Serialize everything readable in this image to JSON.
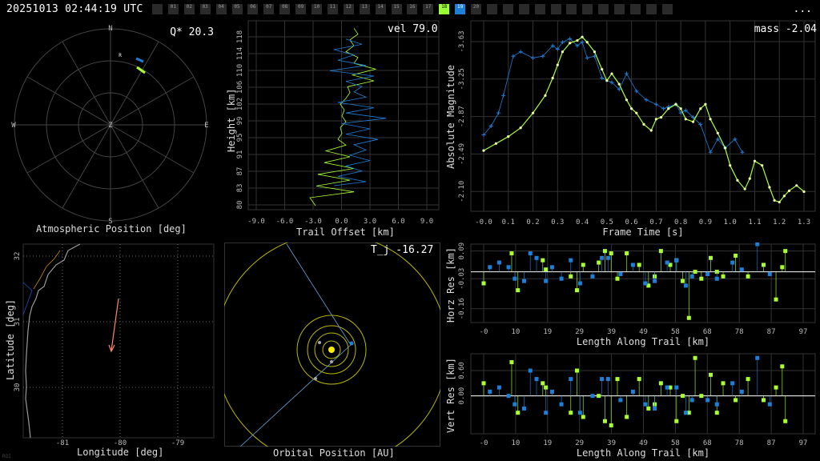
{
  "timestamp": "20251013 02:44:19 UTC",
  "menu": "...",
  "credit": "ROI",
  "cameras": [
    {
      "label": "",
      "state": "off"
    },
    {
      "label": "01",
      "state": "off"
    },
    {
      "label": "02",
      "state": "off"
    },
    {
      "label": "03",
      "state": "off"
    },
    {
      "label": "04",
      "state": "off"
    },
    {
      "label": "05",
      "state": "off"
    },
    {
      "label": "06",
      "state": "off"
    },
    {
      "label": "07",
      "state": "off"
    },
    {
      "label": "08",
      "state": "off"
    },
    {
      "label": "09",
      "state": "off"
    },
    {
      "label": "10",
      "state": "off"
    },
    {
      "label": "11",
      "state": "off"
    },
    {
      "label": "12",
      "state": "off"
    },
    {
      "label": "13",
      "state": "off"
    },
    {
      "label": "14",
      "state": "off"
    },
    {
      "label": "15",
      "state": "off"
    },
    {
      "label": "16",
      "state": "off"
    },
    {
      "label": "17",
      "state": "off"
    },
    {
      "label": "18",
      "state": "green"
    },
    {
      "label": "19",
      "state": "blue"
    },
    {
      "label": "20",
      "state": "off"
    },
    {
      "label": "",
      "state": "off"
    },
    {
      "label": "",
      "state": "off"
    },
    {
      "label": "",
      "state": "off"
    },
    {
      "label": "",
      "state": "off"
    },
    {
      "label": "",
      "state": "off"
    },
    {
      "label": "",
      "state": "off"
    },
    {
      "label": "",
      "state": "off"
    },
    {
      "label": "",
      "state": "off"
    },
    {
      "label": "",
      "state": "off"
    },
    {
      "label": "",
      "state": "off"
    },
    {
      "label": "",
      "state": "off"
    },
    {
      "label": "",
      "state": "off"
    }
  ],
  "colors": {
    "green": "#aaff33",
    "blue": "#1e7fd8",
    "grid": "#444444",
    "yellow": "#d8d800",
    "trail": "#ff8866"
  },
  "polar": {
    "label": "Atmospheric Position [deg]",
    "q_star": "Q* 20.3",
    "directions": [
      "N",
      "E",
      "S",
      "W",
      "Z"
    ],
    "marker": "R"
  },
  "height": {
    "vel": "vel 79.0",
    "xlabel": "Trail Offset [km]",
    "ylabel": "Height [km]",
    "xticks": [
      "-9.0",
      "-6.0",
      "-3.0",
      "0.0",
      "3.0",
      "6.0",
      "9.0"
    ],
    "yticks": [
      "80",
      "83",
      "87",
      "91",
      "95",
      "99",
      "102",
      "106",
      "110",
      "114",
      "118"
    ]
  },
  "map": {
    "xlabel": "Longitude [deg]",
    "ylabel": "Latitude [deg]",
    "xticks": [
      "-81",
      "-80",
      "-79"
    ],
    "yticks": [
      "32",
      "31",
      "30"
    ]
  },
  "orbit": {
    "label": "Orbital Position [AU]",
    "tj": "T_j -16.27"
  },
  "chart_data": [
    {
      "type": "line",
      "title": "mass -2.04",
      "xlabel": "Frame Time [s]",
      "ylabel": "Absolute Magnitude",
      "xticks": [
        "-0.0",
        "0.1",
        "0.2",
        "0.3",
        "0.4",
        "0.5",
        "0.6",
        "0.7",
        "0.8",
        "0.9",
        "1.0",
        "1.1",
        "1.2",
        "1.3"
      ],
      "yticks": [
        "-3.63",
        "-3.25",
        "-2.87",
        "-2.49",
        "-2.10"
      ],
      "xlim": [
        0.0,
        1.3
      ],
      "ylim": [
        -1.78,
        -3.85
      ],
      "series": [
        {
          "color": "green",
          "x": [
            0.0,
            0.05,
            0.1,
            0.15,
            0.2,
            0.25,
            0.28,
            0.3,
            0.32,
            0.35,
            0.38,
            0.4,
            0.42,
            0.45,
            0.48,
            0.5,
            0.52,
            0.55,
            0.58,
            0.6,
            0.62,
            0.65,
            0.68,
            0.7,
            0.72,
            0.75,
            0.78,
            0.8,
            0.82,
            0.85,
            0.88,
            0.9,
            0.92,
            0.95,
            0.98,
            1.0,
            1.03,
            1.06,
            1.08,
            1.1,
            1.13,
            1.16,
            1.18,
            1.2,
            1.22,
            1.24,
            1.27,
            1.3
          ],
          "y": [
            -2.42,
            -2.5,
            -2.58,
            -2.68,
            -2.85,
            -3.05,
            -3.25,
            -3.4,
            -3.55,
            -3.65,
            -3.68,
            -3.72,
            -3.66,
            -3.55,
            -3.35,
            -3.22,
            -3.3,
            -3.18,
            -3.0,
            -2.9,
            -2.85,
            -2.72,
            -2.65,
            -2.78,
            -2.8,
            -2.9,
            -2.95,
            -2.9,
            -2.78,
            -2.75,
            -2.9,
            -2.95,
            -2.78,
            -2.62,
            -2.45,
            -2.25,
            -2.08,
            -1.98,
            -2.1,
            -2.3,
            -2.25,
            -2.0,
            -1.85,
            -1.83,
            -1.9,
            -1.96,
            -2.02,
            -1.95
          ]
        },
        {
          "color": "blue",
          "x": [
            0.0,
            0.03,
            0.06,
            0.08,
            0.12,
            0.15,
            0.2,
            0.24,
            0.28,
            0.3,
            0.32,
            0.35,
            0.38,
            0.4,
            0.42,
            0.45,
            0.48,
            0.52,
            0.55,
            0.58,
            0.62,
            0.66,
            0.7,
            0.73,
            0.75,
            0.78,
            0.8,
            0.82,
            0.85,
            0.88,
            0.92,
            0.95,
            0.98,
            1.02,
            1.05
          ],
          "y": [
            -2.6,
            -2.7,
            -2.85,
            -3.05,
            -3.5,
            -3.55,
            -3.48,
            -3.5,
            -3.62,
            -3.58,
            -3.66,
            -3.7,
            -3.62,
            -3.66,
            -3.48,
            -3.5,
            -3.25,
            -3.2,
            -3.12,
            -3.3,
            -3.1,
            -3.0,
            -2.95,
            -2.9,
            -2.92,
            -2.95,
            -2.85,
            -2.88,
            -2.8,
            -2.72,
            -2.4,
            -2.55,
            -2.45,
            -2.55,
            -2.4
          ]
        }
      ]
    },
    {
      "type": "scatter",
      "ylabel": "Horz Res [km]",
      "xlabel": "Length Along Trail [km]",
      "xticks": [
        "-0",
        "10",
        "19",
        "29",
        "39",
        "49",
        "58",
        "68",
        "78",
        "87",
        "97"
      ],
      "yticks": [
        "0.09",
        "-0.03",
        "-0.16"
      ],
      "xlim": [
        -3,
        100
      ],
      "ylim": [
        -0.22,
        0.12
      ],
      "series": [
        {
          "color": "green",
          "x": [
            0,
            9,
            11,
            19,
            20,
            28,
            30,
            32,
            37,
            39,
            41,
            43,
            46,
            50,
            53,
            55,
            57,
            60,
            62,
            64,
            66,
            68,
            70,
            73,
            75,
            77,
            81,
            85,
            90,
            94,
            96,
            97
          ],
          "y": [
            -0.05,
            0.08,
            -0.08,
            0.05,
            0.01,
            -0.02,
            -0.08,
            0.03,
            0.04,
            0.09,
            0.08,
            -0.03,
            0.08,
            0.03,
            -0.06,
            -0.02,
            0.09,
            0.03,
            0.05,
            -0.04,
            -0.2,
            0.0,
            -0.03,
            0.06,
            0.0,
            -0.02,
            0.07,
            -0.02,
            0.03,
            -0.12,
            0.02,
            0.09
          ]
        },
        {
          "color": "blue",
          "x": [
            2,
            5,
            8,
            10,
            13,
            15,
            17,
            20,
            22,
            25,
            28,
            31,
            35,
            38,
            40,
            44,
            48,
            52,
            55,
            59,
            62,
            65,
            67,
            72,
            75,
            80,
            83,
            88,
            92
          ],
          "y": [
            0.02,
            0.04,
            0.02,
            -0.03,
            -0.04,
            0.08,
            0.06,
            -0.04,
            0.02,
            -0.03,
            0.05,
            -0.05,
            -0.02,
            0.06,
            0.06,
            -0.01,
            0.03,
            -0.05,
            -0.04,
            0.04,
            0.05,
            -0.06,
            -0.02,
            -0.01,
            -0.03,
            0.04,
            0.01,
            0.12,
            -0.01
          ]
        }
      ]
    },
    {
      "type": "scatter",
      "ylabel": "Vert Res [km]",
      "xlabel": "Length Along Trail [km]",
      "xticks": [
        "-0",
        "10",
        "19",
        "29",
        "39",
        "49",
        "58",
        "68",
        "78",
        "87",
        "97"
      ],
      "yticks": [
        "0.60",
        "0.00"
      ],
      "xlim": [
        -3,
        100
      ],
      "ylim": [
        -0.9,
        1.0
      ],
      "series": [
        {
          "color": "green",
          "x": [
            0,
            9,
            11,
            19,
            20,
            28,
            30,
            32,
            37,
            39,
            41,
            43,
            46,
            50,
            53,
            55,
            57,
            60,
            62,
            64,
            66,
            68,
            70,
            73,
            75,
            77,
            81,
            85,
            90,
            94,
            96,
            97
          ],
          "y": [
            0.3,
            0.8,
            -0.4,
            0.3,
            0.2,
            -0.4,
            0.6,
            -0.5,
            0.0,
            -0.6,
            -0.7,
            0.4,
            -0.5,
            0.4,
            -0.3,
            -0.2,
            0.3,
            0.2,
            -0.6,
            0.0,
            -0.4,
            0.9,
            0.0,
            0.5,
            -0.4,
            0.3,
            -0.1,
            0.4,
            -0.1,
            0.2,
            0.7,
            -0.6
          ]
        },
        {
          "color": "blue",
          "x": [
            2,
            5,
            8,
            10,
            13,
            15,
            17,
            20,
            22,
            25,
            28,
            31,
            35,
            38,
            40,
            44,
            48,
            52,
            55,
            59,
            62,
            65,
            67,
            72,
            75,
            80,
            83,
            88,
            92
          ],
          "y": [
            0.1,
            0.2,
            0.0,
            -0.2,
            -0.3,
            0.6,
            0.4,
            -0.4,
            0.1,
            -0.2,
            0.4,
            -0.4,
            0.0,
            0.4,
            0.4,
            -0.1,
            0.1,
            -0.2,
            -0.3,
            0.2,
            0.2,
            -0.4,
            -0.1,
            -0.1,
            -0.2,
            0.3,
            0.1,
            0.9,
            -0.2
          ]
        }
      ]
    }
  ]
}
